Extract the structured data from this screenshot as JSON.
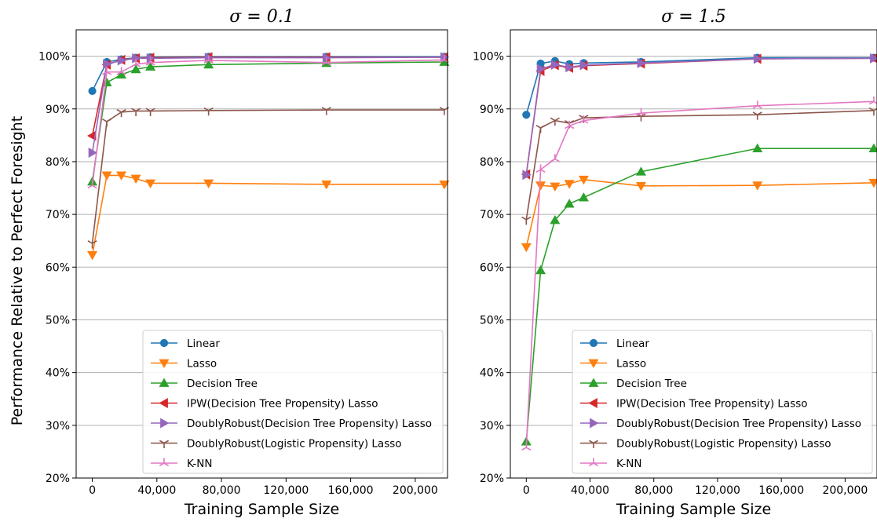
{
  "ylabel": "Performance Relative to Perfect Foresight",
  "legend_entries": [
    "Linear",
    "Lasso",
    "Decision Tree",
    "IPW(Decision Tree Propensity) Lasso",
    "DoublyRobust(Decision Tree Propensity) Lasso",
    "DoublyRobust(Logistic Propensity) Lasso",
    "K-NN"
  ],
  "series_styles": [
    {
      "name": "Linear",
      "color": "#1f77b4",
      "marker": "circle"
    },
    {
      "name": "Lasso",
      "color": "#ff7f0e",
      "marker": "triangle-down"
    },
    {
      "name": "Decision Tree",
      "color": "#2ca02c",
      "marker": "triangle-up"
    },
    {
      "name": "IPW(Decision Tree Propensity) Lasso",
      "color": "#d62728",
      "marker": "triangle-left"
    },
    {
      "name": "DoublyRobust(Decision Tree Propensity) Lasso",
      "color": "#9467bd",
      "marker": "triangle-right"
    },
    {
      "name": "DoublyRobust(Logistic Propensity) Lasso",
      "color": "#8c564b",
      "marker": "tri-down"
    },
    {
      "name": "K-NN",
      "color": "#e377c2",
      "marker": "tri-up"
    }
  ],
  "chart_data": [
    {
      "type": "line",
      "title": "σ = 0.1",
      "xlabel": "Training Sample Size",
      "ylabel": "Performance Relative to Perfect Foresight",
      "xlim": [
        -10000,
        220000
      ],
      "ylim": [
        20,
        105
      ],
      "xticks": [
        0,
        40000,
        80000,
        120000,
        160000,
        200000
      ],
      "xtick_labels": [
        "0",
        "40,000",
        "80,000",
        "120,000",
        "160,000",
        "200,000"
      ],
      "yticks": [
        20,
        30,
        40,
        50,
        60,
        70,
        80,
        90,
        100
      ],
      "ytick_labels": [
        "20%",
        "30%",
        "40%",
        "50%",
        "60%",
        "70%",
        "80%",
        "90%",
        "100%"
      ],
      "grid": "horizontal",
      "legend": "lower-right",
      "x": [
        0,
        9000,
        18000,
        27000,
        36000,
        72000,
        145000,
        218000
      ],
      "series": [
        {
          "name": "Linear",
          "values": [
            93.4,
            98.9,
            99.4,
            99.7,
            99.8,
            99.9,
            99.9,
            99.9
          ]
        },
        {
          "name": "Lasso",
          "values": [
            62.3,
            77.4,
            77.4,
            76.8,
            75.9,
            75.9,
            75.7,
            75.7
          ]
        },
        {
          "name": "Decision Tree",
          "values": [
            76.2,
            95.0,
            96.5,
            97.5,
            98.0,
            98.4,
            98.7,
            98.9
          ]
        },
        {
          "name": "IPW(Decision Tree Propensity) Lasso",
          "values": [
            84.9,
            98.4,
            99.3,
            99.6,
            99.7,
            99.8,
            99.8,
            99.8
          ]
        },
        {
          "name": "DoublyRobust(Decision Tree Propensity) Lasso",
          "values": [
            81.7,
            98.5,
            99.2,
            99.6,
            99.6,
            99.7,
            99.7,
            99.8
          ]
        },
        {
          "name": "DoublyRobust(Logistic Propensity) Lasso",
          "values": [
            64.5,
            87.6,
            89.4,
            89.6,
            89.6,
            89.7,
            89.8,
            89.8
          ]
        },
        {
          "name": "K-NN",
          "values": [
            75.5,
            97.0,
            97.0,
            98.5,
            98.8,
            99.2,
            98.8,
            99.3
          ]
        }
      ]
    },
    {
      "type": "line",
      "title": "σ = 1.5",
      "xlabel": "Training Sample Size",
      "ylabel": "",
      "xlim": [
        -10000,
        220000
      ],
      "ylim": [
        20,
        105
      ],
      "xticks": [
        0,
        40000,
        80000,
        120000,
        160000,
        200000
      ],
      "xtick_labels": [
        "0",
        "40,000",
        "80,000",
        "120,000",
        "160,000",
        "200,000"
      ],
      "yticks": [
        20,
        30,
        40,
        50,
        60,
        70,
        80,
        90,
        100
      ],
      "ytick_labels": [
        "20%",
        "30%",
        "40%",
        "50%",
        "60%",
        "70%",
        "80%",
        "90%",
        "100%"
      ],
      "grid": "horizontal",
      "legend": "lower-right",
      "x": [
        0,
        9000,
        18000,
        27000,
        36000,
        72000,
        145000,
        218000
      ],
      "series": [
        {
          "name": "Linear",
          "values": [
            88.9,
            98.6,
            99.1,
            98.5,
            98.7,
            98.9,
            99.7,
            99.7
          ]
        },
        {
          "name": "Lasso",
          "values": [
            63.8,
            75.5,
            75.3,
            75.8,
            76.6,
            75.4,
            75.5,
            76.0
          ]
        },
        {
          "name": "Decision Tree",
          "values": [
            26.9,
            59.4,
            68.9,
            72.0,
            73.2,
            78.1,
            82.5,
            82.5
          ]
        },
        {
          "name": "IPW(Decision Tree Propensity) Lasso",
          "values": [
            77.6,
            97.2,
            98.3,
            97.8,
            98.2,
            98.6,
            99.5,
            99.6
          ]
        },
        {
          "name": "DoublyRobust(Decision Tree Propensity) Lasso",
          "values": [
            77.5,
            97.6,
            98.4,
            97.9,
            98.3,
            98.7,
            99.5,
            99.6
          ]
        },
        {
          "name": "DoublyRobust(Logistic Propensity) Lasso",
          "values": [
            69.0,
            86.4,
            87.8,
            87.3,
            88.3,
            88.6,
            88.9,
            89.7
          ]
        },
        {
          "name": "K-NN",
          "values": [
            25.8,
            78.5,
            80.5,
            86.8,
            87.8,
            89.2,
            90.6,
            91.4
          ]
        }
      ]
    }
  ]
}
